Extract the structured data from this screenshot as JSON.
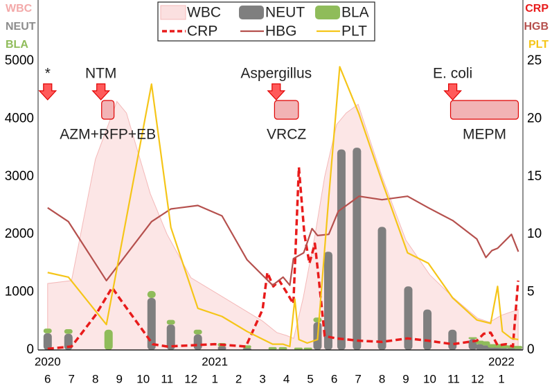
{
  "chart_data": {
    "type": "combo",
    "ylim": [
      0,
      5000
    ],
    "yticks": [
      0,
      1000,
      2000,
      3000,
      4000,
      5000
    ],
    "y2lim": [
      0,
      25
    ],
    "y2ticks": [
      0,
      5,
      10,
      15,
      20,
      25
    ],
    "xlim": [
      -0.4,
      19.9
    ],
    "xticks": [
      {
        "value": 0,
        "label": "6"
      },
      {
        "value": 1,
        "label": "7"
      },
      {
        "value": 2,
        "label": "8"
      },
      {
        "value": 3,
        "label": "9"
      },
      {
        "value": 4,
        "label": "10"
      },
      {
        "value": 5,
        "label": "11"
      },
      {
        "value": 6,
        "label": "12"
      },
      {
        "value": 7,
        "label": "1"
      },
      {
        "value": 8,
        "label": "2"
      },
      {
        "value": 9,
        "label": "3"
      },
      {
        "value": 10,
        "label": "4"
      },
      {
        "value": 11,
        "label": "5"
      },
      {
        "value": 12,
        "label": "6"
      },
      {
        "value": 13,
        "label": "7"
      },
      {
        "value": 14,
        "label": "8"
      },
      {
        "value": 15,
        "label": "9"
      },
      {
        "value": 16,
        "label": "10"
      },
      {
        "value": 17,
        "label": "11"
      },
      {
        "value": 18,
        "label": "12"
      },
      {
        "value": 19,
        "label": "1"
      }
    ],
    "year_ticks": [
      {
        "value": 0,
        "label": "2020"
      },
      {
        "value": 7,
        "label": "2021"
      },
      {
        "value": 19,
        "label": "2022"
      }
    ],
    "y_label_lines": [
      {
        "text": "WBC",
        "color": "#f3a9a9"
      },
      {
        "text": "NEUT",
        "color": "#8c8c8c"
      },
      {
        "text": "BLA",
        "color": "#8fbc5a"
      }
    ],
    "y2_label_lines": [
      {
        "text": "CRP",
        "color": "#e81b1b"
      },
      {
        "text": "HGB",
        "color": "#b5504d"
      },
      {
        "text": "PLT",
        "color": "#f5c518"
      }
    ],
    "series": [
      {
        "name": "WBC",
        "kind": "area",
        "axis": "y",
        "color": "#fbe0e0",
        "edge": "#f4b8b8",
        "x": [
          0,
          1,
          2,
          2.9,
          3.3,
          4.3,
          5,
          6,
          7,
          8,
          9,
          9.6,
          10,
          10.3,
          10.7,
          11.2,
          11.6,
          12.1,
          12.5,
          13,
          14,
          15,
          16,
          17,
          18,
          18.5,
          19,
          19.7
        ],
        "values": [
          1150,
          1200,
          3300,
          4300,
          4100,
          2700,
          2000,
          1250,
          1000,
          750,
          500,
          300,
          250,
          200,
          900,
          2000,
          3000,
          3900,
          4100,
          4250,
          3000,
          1900,
          1300,
          900,
          550,
          480,
          600,
          700
        ]
      },
      {
        "name": "NEUT",
        "kind": "bar",
        "axis": "y",
        "color": "#7f7f7f",
        "x": [
          0,
          0.87,
          2.55,
          4.35,
          5.16,
          6.29,
          7.3,
          8.35,
          9.42,
          9.85,
          10.5,
          10.9,
          11.3,
          11.75,
          12.3,
          12.95,
          14,
          15.1,
          15.9,
          16.95,
          17.8,
          18.1,
          18.35,
          18.6,
          18.85,
          19.1,
          19.4,
          19.7
        ],
        "values": [
          290,
          280,
          0,
          900,
          440,
          270,
          60,
          30,
          0,
          0,
          0,
          0,
          480,
          1700,
          3470,
          3500,
          2130,
          1100,
          700,
          350,
          190,
          100,
          80,
          40,
          40,
          30,
          30,
          20
        ]
      },
      {
        "name": "BLA",
        "kind": "bar",
        "axis": "y",
        "stack_on": 1,
        "color": "#8fbc5a",
        "x": [
          0,
          0.87,
          2.55,
          4.35,
          5.16,
          6.29,
          7.3,
          8.35,
          9.42,
          9.85,
          10.5,
          10.9,
          11.3,
          11.75,
          12.3,
          12.95,
          14,
          15.1,
          15.9,
          16.95,
          17.8,
          18.1,
          18.35,
          18.6,
          18.85,
          19.1,
          19.4,
          19.7
        ],
        "values": [
          80,
          80,
          350,
          120,
          80,
          80,
          60,
          50,
          50,
          50,
          40,
          40,
          80,
          0,
          0,
          0,
          0,
          0,
          0,
          0,
          30,
          60,
          70,
          60,
          60,
          60,
          50,
          50
        ]
      },
      {
        "name": "CRP",
        "kind": "line",
        "axis": "y2",
        "color": "#e81b1b",
        "style": "dashed",
        "x": [
          0,
          1,
          2,
          2.7,
          3,
          4.4,
          5,
          7,
          8.3,
          9,
          9.2,
          9.45,
          9.7,
          10,
          10.29,
          10.52,
          10.75,
          10.96,
          11.19,
          11.36,
          11.6,
          12.1,
          13.04,
          14,
          15.07,
          15.94,
          16.96,
          17.97,
          18.26,
          18.55,
          18.84,
          19.2,
          19.48,
          19.7
        ],
        "values": [
          0.1,
          0.3,
          3,
          5.4,
          4.5,
          0.5,
          0.3,
          0.5,
          0.3,
          3.5,
          6.7,
          5.5,
          6,
          5,
          4,
          15.8,
          10,
          7.5,
          9.2,
          6,
          1.2,
          1,
          0.8,
          0.7,
          1,
          0.8,
          0.5,
          0.8,
          1.4,
          1.5,
          0.4,
          0.5,
          0.3,
          6
        ]
      },
      {
        "name": "HBG",
        "kind": "line",
        "axis": "y2",
        "color": "#b5504d",
        "style": "solid",
        "x": [
          0,
          0.87,
          2.46,
          4.35,
          5.16,
          6.29,
          7.3,
          8.35,
          9.42,
          9.86,
          10.14,
          10.29,
          10.72,
          11.07,
          11.3,
          11.77,
          12.17,
          13.04,
          14,
          15.07,
          15.94,
          16.96,
          17.97,
          18.35,
          18.6,
          18.84,
          19.42,
          19.71
        ],
        "values": [
          12.3,
          11.1,
          6,
          11.1,
          12.2,
          12.5,
          11.6,
          7.8,
          5.6,
          6.3,
          5.6,
          7.9,
          8.4,
          10.5,
          9.9,
          10,
          12,
          13.3,
          13,
          13.3,
          12.3,
          11.2,
          9.6,
          8,
          8.6,
          8.8,
          10,
          8.5
        ]
      },
      {
        "name": "PLT",
        "kind": "line",
        "axis": "y2",
        "color": "#f5c518",
        "style": "solid",
        "x": [
          0,
          0.87,
          2.46,
          4.35,
          5.16,
          6.29,
          7.3,
          8.35,
          9.42,
          9.86,
          10.14,
          10.35,
          10.52,
          10.87,
          11.3,
          11.77,
          12.23,
          13.04,
          14,
          15.07,
          15.94,
          16.96,
          17.97,
          18.55,
          18.84,
          19.04,
          19.42,
          19.71
        ],
        "values": [
          6.7,
          6.3,
          2.2,
          23,
          10.6,
          3.6,
          2.9,
          1.6,
          0.5,
          0.5,
          0.3,
          4.4,
          0.9,
          0.6,
          0.9,
          13.2,
          24.5,
          20.4,
          14.6,
          8.4,
          7.5,
          4.5,
          2.6,
          2.3,
          5.5,
          1.6,
          1,
          0.9
        ]
      }
    ],
    "events": [
      {
        "label": "*",
        "x": 0
      },
      {
        "label": "NTM",
        "x": 2.23,
        "start": 2.26,
        "end": 2.78,
        "drug": "AZM+RFP+EB"
      },
      {
        "label": "Aspergillus",
        "x": 9.57,
        "start": 9.5,
        "end": 10.5,
        "drug": "VRCZ"
      },
      {
        "label": "E. coli",
        "x": 16.96,
        "start": 16.87,
        "end": 19.71,
        "drug": "MEPM"
      }
    ]
  }
}
